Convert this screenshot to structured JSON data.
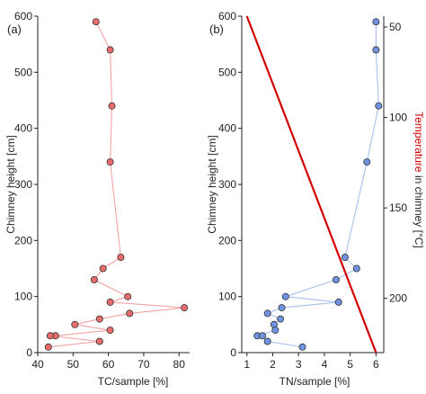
{
  "colors": {
    "tc_line": "#f4a3a3",
    "tc_fill": "#e96b6b",
    "tn_line": "#a9c0ee",
    "tn_fill": "#6f93e0",
    "temperature_line": "#d40000",
    "axis": "#222222"
  },
  "chart_data": [
    {
      "type": "line",
      "panel_label": "(a)",
      "xlabel": "TC/sample [%]",
      "ylabel": "Chimney height [cm]",
      "xlim": [
        40,
        83
      ],
      "ylim": [
        0,
        600
      ],
      "xticks": [
        "40",
        "50",
        "60",
        "70",
        "80"
      ],
      "yticks": [
        "0",
        "100",
        "200",
        "300",
        "400",
        "500",
        "600"
      ],
      "grid": false,
      "series": [
        {
          "x": [
            56.5,
            60.5,
            61.0,
            60.5,
            63.5,
            58.5,
            56.0,
            65.5,
            60.5,
            81.5,
            66.0,
            57.5,
            50.5,
            60.5,
            45.0,
            43.5,
            57.5,
            43.0
          ],
          "y": [
            590,
            540,
            440,
            340,
            170,
            150,
            130,
            100,
            90,
            80,
            70,
            60,
            50,
            40,
            30,
            30,
            20,
            10
          ]
        }
      ]
    },
    {
      "type": "line",
      "panel_label": "(b)",
      "xlabel": "TN/sample [%]",
      "ylabel": "Chimney height [cm]",
      "y2label_colored": "Temperature",
      "y2label_rest": " in chimney [°C]",
      "xlim": [
        0.8,
        6.3
      ],
      "ylim": [
        0,
        600
      ],
      "y2lim": [
        230,
        44
      ],
      "xticks": [
        "1",
        "2",
        "3",
        "4",
        "5",
        "6"
      ],
      "yticks": [
        "0",
        "100",
        "200",
        "300",
        "400",
        "500",
        "600"
      ],
      "y2ticks": [
        "50",
        "100",
        "150",
        "200"
      ],
      "grid": false,
      "series": [
        {
          "x": [
            6.0,
            6.0,
            6.1,
            5.65,
            4.8,
            5.25,
            4.45,
            2.5,
            4.55,
            2.35,
            1.8,
            2.3,
            2.05,
            2.1,
            1.4,
            1.6,
            1.8,
            3.15
          ],
          "y": [
            590,
            540,
            440,
            340,
            170,
            150,
            130,
            100,
            90,
            80,
            70,
            60,
            50,
            40,
            30,
            30,
            20,
            10
          ]
        },
        {
          "x": [
            1.0,
            6.0
          ],
          "y": [
            600,
            0
          ]
        }
      ]
    }
  ]
}
